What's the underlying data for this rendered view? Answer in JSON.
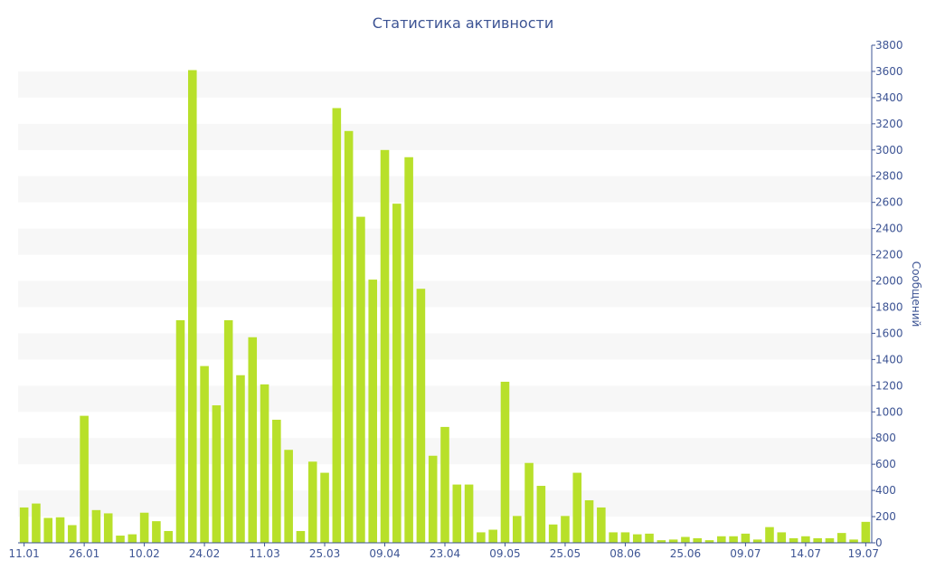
{
  "chart_data": {
    "type": "bar",
    "title": "Статистика активности",
    "ylabel": "Сообщений",
    "ylim": [
      0,
      3800
    ],
    "y_ticks": [
      0,
      200,
      400,
      600,
      800,
      1000,
      1200,
      1400,
      1600,
      1800,
      2000,
      2200,
      2400,
      2600,
      2800,
      3000,
      3200,
      3400,
      3600,
      3800
    ],
    "y_axis_side": "right",
    "grid": "alternating horizontal bands",
    "legend": "none",
    "x_tick_labels": [
      "11.01",
      "26.01",
      "10.02",
      "24.02",
      "11.03",
      "25.03",
      "09.04",
      "23.04",
      "09.05",
      "25.05",
      "08.06",
      "25.06",
      "09.07",
      "14.07",
      "19.07"
    ],
    "values": [
      270,
      300,
      190,
      195,
      135,
      970,
      250,
      225,
      55,
      65,
      230,
      165,
      90,
      1700,
      3610,
      1350,
      1050,
      1700,
      1280,
      1570,
      1210,
      940,
      710,
      90,
      620,
      535,
      3320,
      3145,
      2490,
      2010,
      3000,
      2590,
      2945,
      1940,
      665,
      885,
      445,
      445,
      80,
      100,
      1230,
      205,
      610,
      435,
      140,
      205,
      535,
      325,
      270,
      80,
      80,
      65,
      70,
      20,
      25,
      45,
      35,
      20,
      50,
      50,
      70,
      25,
      120,
      80,
      35,
      50,
      35,
      35,
      75,
      25,
      160
    ],
    "colors": {
      "bar": "#b8e02a",
      "band": "#f7f7f7",
      "text": "#3d5494",
      "axis": "#3d5494"
    }
  }
}
